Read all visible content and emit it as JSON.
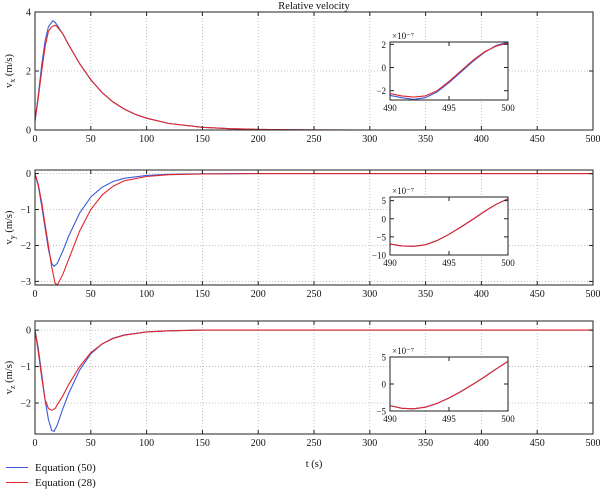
{
  "chart_data": [
    {
      "type": "line",
      "title": "Relative velocity",
      "ylabel": "v_x (m/s)",
      "xlim": [
        0,
        500
      ],
      "ylim": [
        0,
        4
      ],
      "xticks": [
        0,
        50,
        100,
        150,
        200,
        250,
        300,
        350,
        400,
        450,
        500
      ],
      "yticks": [
        0,
        2,
        4
      ],
      "grid": true,
      "series": [
        {
          "name": "Equation (50)",
          "color": "#3a5bd9",
          "x": [
            0,
            3,
            6,
            9,
            12,
            15,
            16,
            18,
            20,
            25,
            30,
            40,
            50,
            60,
            70,
            80,
            90,
            100,
            120,
            150,
            175,
            200,
            250,
            300,
            350,
            400,
            450,
            500
          ],
          "y": [
            0.3,
            1.2,
            2.2,
            3.0,
            3.5,
            3.65,
            3.7,
            3.65,
            3.55,
            3.25,
            2.9,
            2.25,
            1.7,
            1.27,
            0.95,
            0.71,
            0.53,
            0.4,
            0.22,
            0.09,
            0.045,
            0.02,
            0.005,
            0.001,
            0,
            0,
            0,
            0
          ]
        },
        {
          "name": "Equation (28)",
          "color": "#e0262b",
          "x": [
            0,
            3,
            6,
            9,
            12,
            15,
            18,
            20,
            25,
            30,
            40,
            50,
            60,
            70,
            80,
            90,
            100,
            120,
            150,
            175,
            200,
            250,
            300,
            350,
            400,
            450,
            500
          ],
          "y": [
            0.3,
            1.1,
            2.0,
            2.8,
            3.35,
            3.5,
            3.55,
            3.5,
            3.25,
            2.9,
            2.25,
            1.7,
            1.27,
            0.95,
            0.71,
            0.53,
            0.4,
            0.22,
            0.09,
            0.045,
            0.02,
            0.005,
            0.001,
            0,
            0,
            0,
            0
          ]
        }
      ],
      "inset": {
        "xlim": [
          490,
          500
        ],
        "ylim": [
          -2.8,
          2.2
        ],
        "xticks": [
          490,
          495,
          500
        ],
        "yticks": [
          -2,
          0,
          2
        ],
        "yexponent": "×10⁻⁷",
        "series": [
          {
            "color": "#3a5bd9",
            "x": [
              490,
              491,
              492,
              493,
              494,
              495,
              496,
              497,
              498,
              499,
              500
            ],
            "y": [
              -2.4,
              -2.6,
              -2.75,
              -2.6,
              -2.1,
              -1.3,
              -0.4,
              0.5,
              1.3,
              1.9,
              2.2
            ]
          },
          {
            "color": "#e0262b",
            "x": [
              490,
              491,
              492,
              493,
              494,
              495,
              496,
              497,
              498,
              499,
              500
            ],
            "y": [
              -2.25,
              -2.45,
              -2.55,
              -2.45,
              -2.0,
              -1.2,
              -0.3,
              0.6,
              1.35,
              1.85,
              2.1
            ]
          }
        ]
      }
    },
    {
      "type": "line",
      "ylabel": "v_y (m/s)",
      "xlim": [
        0,
        500
      ],
      "ylim": [
        -3.1,
        0.1
      ],
      "xticks": [
        0,
        50,
        100,
        150,
        200,
        250,
        300,
        350,
        400,
        450,
        500
      ],
      "yticks": [
        -3,
        -2,
        -1,
        0
      ],
      "grid": true,
      "series": [
        {
          "name": "Equation (50)",
          "color": "#3a5bd9",
          "x": [
            0,
            3,
            6,
            9,
            12,
            15,
            17,
            20,
            25,
            30,
            40,
            50,
            60,
            70,
            80,
            100,
            120,
            150,
            200,
            250,
            300,
            350,
            400,
            450,
            500
          ],
          "y": [
            0,
            -0.35,
            -0.9,
            -1.5,
            -2.1,
            -2.5,
            -2.58,
            -2.5,
            -2.15,
            -1.75,
            -1.1,
            -0.65,
            -0.38,
            -0.22,
            -0.13,
            -0.05,
            -0.02,
            -0.005,
            0,
            0,
            0,
            0,
            0,
            0,
            0
          ]
        },
        {
          "name": "Equation (28)",
          "color": "#e0262b",
          "x": [
            0,
            3,
            6,
            9,
            12,
            15,
            18,
            20,
            25,
            30,
            40,
            50,
            60,
            70,
            80,
            100,
            120,
            150,
            200,
            250,
            300,
            350,
            400,
            450,
            500
          ],
          "y": [
            0,
            -0.3,
            -0.8,
            -1.4,
            -2.0,
            -2.6,
            -3.05,
            -3.1,
            -2.8,
            -2.4,
            -1.6,
            -1.0,
            -0.6,
            -0.35,
            -0.2,
            -0.08,
            -0.03,
            -0.01,
            0,
            0,
            0,
            0,
            0,
            0,
            0
          ]
        }
      ],
      "inset": {
        "xlim": [
          490,
          500
        ],
        "ylim": [
          -10,
          6
        ],
        "xticks": [
          490,
          495,
          500
        ],
        "yticks": [
          -10,
          -5,
          0,
          5
        ],
        "yexponent": "×10⁻⁷",
        "series": [
          {
            "color": "#3a5bd9",
            "x": [
              490,
              491,
              492,
              493,
              494,
              495,
              496,
              497,
              498,
              499,
              500
            ],
            "y": [
              -7.0,
              -7.5,
              -7.6,
              -7.2,
              -6.0,
              -4.3,
              -2.3,
              -0.2,
              2.0,
              4.0,
              5.5
            ]
          },
          {
            "color": "#e0262b",
            "x": [
              490,
              491,
              492,
              493,
              494,
              495,
              496,
              497,
              498,
              499,
              500
            ],
            "y": [
              -7.0,
              -7.5,
              -7.6,
              -7.2,
              -6.0,
              -4.3,
              -2.3,
              -0.2,
              2.0,
              4.0,
              5.5
            ]
          }
        ]
      }
    },
    {
      "type": "line",
      "ylabel": "v_z (m/s)",
      "xlabel": "t (s)",
      "xlim": [
        0,
        500
      ],
      "ylim": [
        -2.85,
        0.25
      ],
      "xticks": [
        0,
        50,
        100,
        150,
        200,
        250,
        300,
        350,
        400,
        450,
        500
      ],
      "yticks": [
        -2,
        -1,
        0
      ],
      "grid": true,
      "series": [
        {
          "name": "Equation (50)",
          "color": "#3a5bd9",
          "x": [
            0,
            3,
            6,
            9,
            12,
            15,
            17,
            20,
            25,
            30,
            40,
            50,
            60,
            70,
            80,
            100,
            120,
            150,
            200,
            250,
            300,
            350,
            400,
            450,
            500
          ],
          "y": [
            0,
            -0.5,
            -1.2,
            -1.9,
            -2.45,
            -2.75,
            -2.78,
            -2.6,
            -2.15,
            -1.75,
            -1.1,
            -0.65,
            -0.38,
            -0.22,
            -0.13,
            -0.05,
            -0.02,
            0,
            0,
            0,
            0,
            0,
            0,
            0,
            0
          ]
        },
        {
          "name": "Equation (28)",
          "color": "#e0262b",
          "x": [
            0,
            3,
            6,
            9,
            12,
            15,
            18,
            20,
            25,
            30,
            40,
            50,
            60,
            70,
            80,
            100,
            120,
            150,
            200,
            250,
            300,
            350,
            400,
            450,
            500
          ],
          "y": [
            0,
            -0.6,
            -1.3,
            -1.9,
            -2.15,
            -2.2,
            -2.15,
            -2.05,
            -1.8,
            -1.5,
            -1.0,
            -0.62,
            -0.38,
            -0.23,
            -0.14,
            -0.05,
            -0.02,
            0,
            0,
            0,
            0,
            0,
            0,
            0,
            0
          ]
        }
      ],
      "inset": {
        "xlim": [
          490,
          500
        ],
        "ylim": [
          -5,
          5
        ],
        "xticks": [
          490,
          495,
          500
        ],
        "yticks": [
          -5,
          0,
          5
        ],
        "yexponent": "×10⁻⁷",
        "series": [
          {
            "color": "#3a5bd9",
            "x": [
              490,
              491,
              492,
              493,
              494,
              495,
              496,
              497,
              498,
              499,
              500
            ],
            "y": [
              -4.0,
              -4.5,
              -4.6,
              -4.3,
              -3.6,
              -2.6,
              -1.4,
              -0.1,
              1.3,
              2.8,
              4.2
            ]
          },
          {
            "color": "#e0262b",
            "x": [
              490,
              491,
              492,
              493,
              494,
              495,
              496,
              497,
              498,
              499,
              500
            ],
            "y": [
              -4.0,
              -4.5,
              -4.6,
              -4.3,
              -3.6,
              -2.6,
              -1.4,
              -0.1,
              1.3,
              2.8,
              4.2
            ]
          }
        ]
      }
    }
  ],
  "legend": {
    "items": [
      {
        "label": "Equation (50)",
        "color": "#3a5bd9"
      },
      {
        "label": "Equation (28)",
        "color": "#e0262b"
      }
    ]
  }
}
